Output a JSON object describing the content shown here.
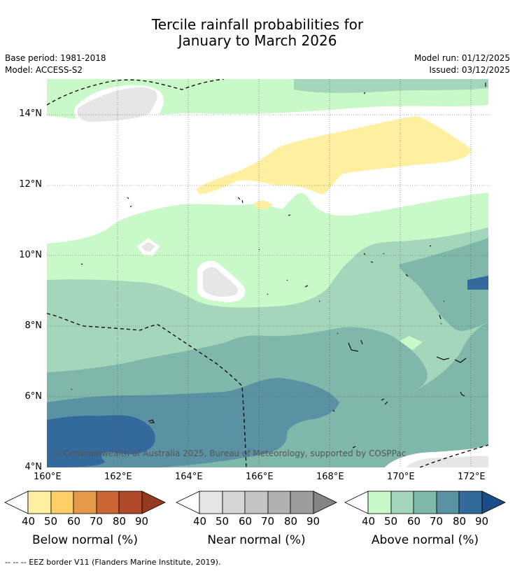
{
  "title": {
    "line1": "Tercile rainfall probabilities for",
    "line2": "January to March 2026"
  },
  "meta": {
    "base_period": "Base period: 1981-2018",
    "model": "Model: ACCESS-S2",
    "model_run": "Model run: 01/12/2025",
    "issued": "Issued: 03/12/2025"
  },
  "map": {
    "lat_labels": [
      "14°N",
      "12°N",
      "10°N",
      "8°N",
      "6°N",
      "4°N"
    ],
    "lon_labels": [
      "160°E",
      "162°E",
      "164°E",
      "166°E",
      "168°E",
      "170°E",
      "172°E"
    ],
    "copyright": "© Commonwealth of Australia 2025, Bureau of Meteorology, supported by COSPPac"
  },
  "colorbars": [
    {
      "label": "Below normal (%)",
      "ticks": [
        "40",
        "50",
        "60",
        "70",
        "80",
        "90"
      ],
      "colors": [
        "#fef0a0",
        "#fdcf66",
        "#e4984a",
        "#cc6434",
        "#b04a2a",
        "#953a20"
      ]
    },
    {
      "label": "Near normal (%)",
      "ticks": [
        "40",
        "50",
        "60",
        "70",
        "80",
        "90"
      ],
      "colors": [
        "#e6e6e6",
        "#d6d6d6",
        "#c4c4c4",
        "#b0b0b0",
        "#9c9c9c",
        "#848484"
      ]
    },
    {
      "label": "Above normal (%)",
      "ticks": [
        "40",
        "50",
        "60",
        "70",
        "80",
        "90"
      ],
      "colors": [
        "#c9f9c9",
        "#a3d6ba",
        "#7fb7ab",
        "#5a91a3",
        "#336a9b",
        "#1a4d88"
      ]
    }
  ],
  "footnote": "--  --  -- EEZ border V11 (Flanders Marine Institute, 2019)."
}
